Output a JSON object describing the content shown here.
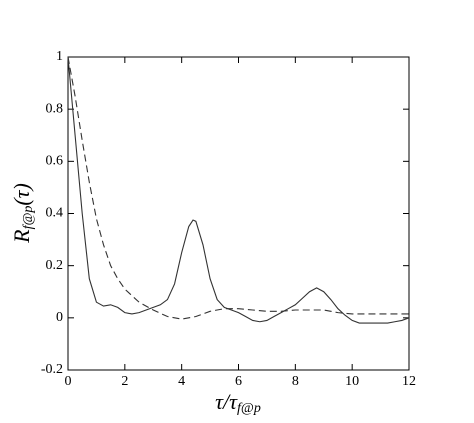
{
  "chart_data": {
    "type": "line",
    "xlabel": {
      "main": "τ/τ",
      "sub": "f@p"
    },
    "ylabel": {
      "main": "R",
      "sub": "f@p",
      "tail": "(τ)"
    },
    "xlim": [
      0,
      12
    ],
    "ylim": [
      -0.2,
      1
    ],
    "xticks": [
      0,
      2,
      4,
      6,
      8,
      10,
      12
    ],
    "yticks": [
      -0.2,
      0,
      0.2,
      0.4,
      0.6,
      0.8,
      1
    ],
    "grid": false,
    "series": [
      {
        "color": "#333333",
        "dash": "solid",
        "x": [
          0,
          0.25,
          0.5,
          0.75,
          1,
          1.25,
          1.5,
          1.75,
          2,
          2.25,
          2.5,
          2.75,
          3,
          3.25,
          3.5,
          3.75,
          4,
          4.25,
          4.4,
          4.5,
          4.75,
          5,
          5.25,
          5.5,
          5.75,
          6,
          6.25,
          6.5,
          6.75,
          7,
          7.25,
          7.5,
          7.75,
          8,
          8.25,
          8.5,
          8.75,
          9,
          9.25,
          9.5,
          9.75,
          10,
          10.25,
          10.5,
          10.75,
          11,
          11.25,
          11.5,
          11.75,
          12
        ],
        "values": [
          1,
          0.7,
          0.4,
          0.15,
          0.06,
          0.045,
          0.05,
          0.04,
          0.02,
          0.015,
          0.02,
          0.03,
          0.04,
          0.05,
          0.07,
          0.13,
          0.25,
          0.35,
          0.375,
          0.37,
          0.28,
          0.15,
          0.07,
          0.04,
          0.03,
          0.02,
          0.005,
          -0.01,
          -0.015,
          -0.01,
          0.005,
          0.02,
          0.035,
          0.05,
          0.075,
          0.1,
          0.115,
          0.1,
          0.07,
          0.035,
          0.01,
          -0.01,
          -0.02,
          -0.02,
          -0.02,
          -0.02,
          -0.02,
          -0.015,
          -0.01,
          0
        ]
      },
      {
        "color": "#333333",
        "dash": "dashed",
        "x": [
          0,
          0.25,
          0.5,
          0.75,
          1,
          1.25,
          1.5,
          1.75,
          2,
          2.5,
          3,
          3.5,
          4,
          4.5,
          5,
          5.5,
          6,
          6.5,
          7,
          7.5,
          8,
          8.5,
          9,
          9.5,
          10,
          11,
          12
        ],
        "values": [
          1,
          0.85,
          0.68,
          0.52,
          0.38,
          0.28,
          0.2,
          0.15,
          0.11,
          0.06,
          0.03,
          0.005,
          -0.005,
          0.005,
          0.025,
          0.035,
          0.035,
          0.03,
          0.025,
          0.025,
          0.03,
          0.03,
          0.03,
          0.02,
          0.015,
          0.015,
          0.015
        ]
      }
    ]
  }
}
